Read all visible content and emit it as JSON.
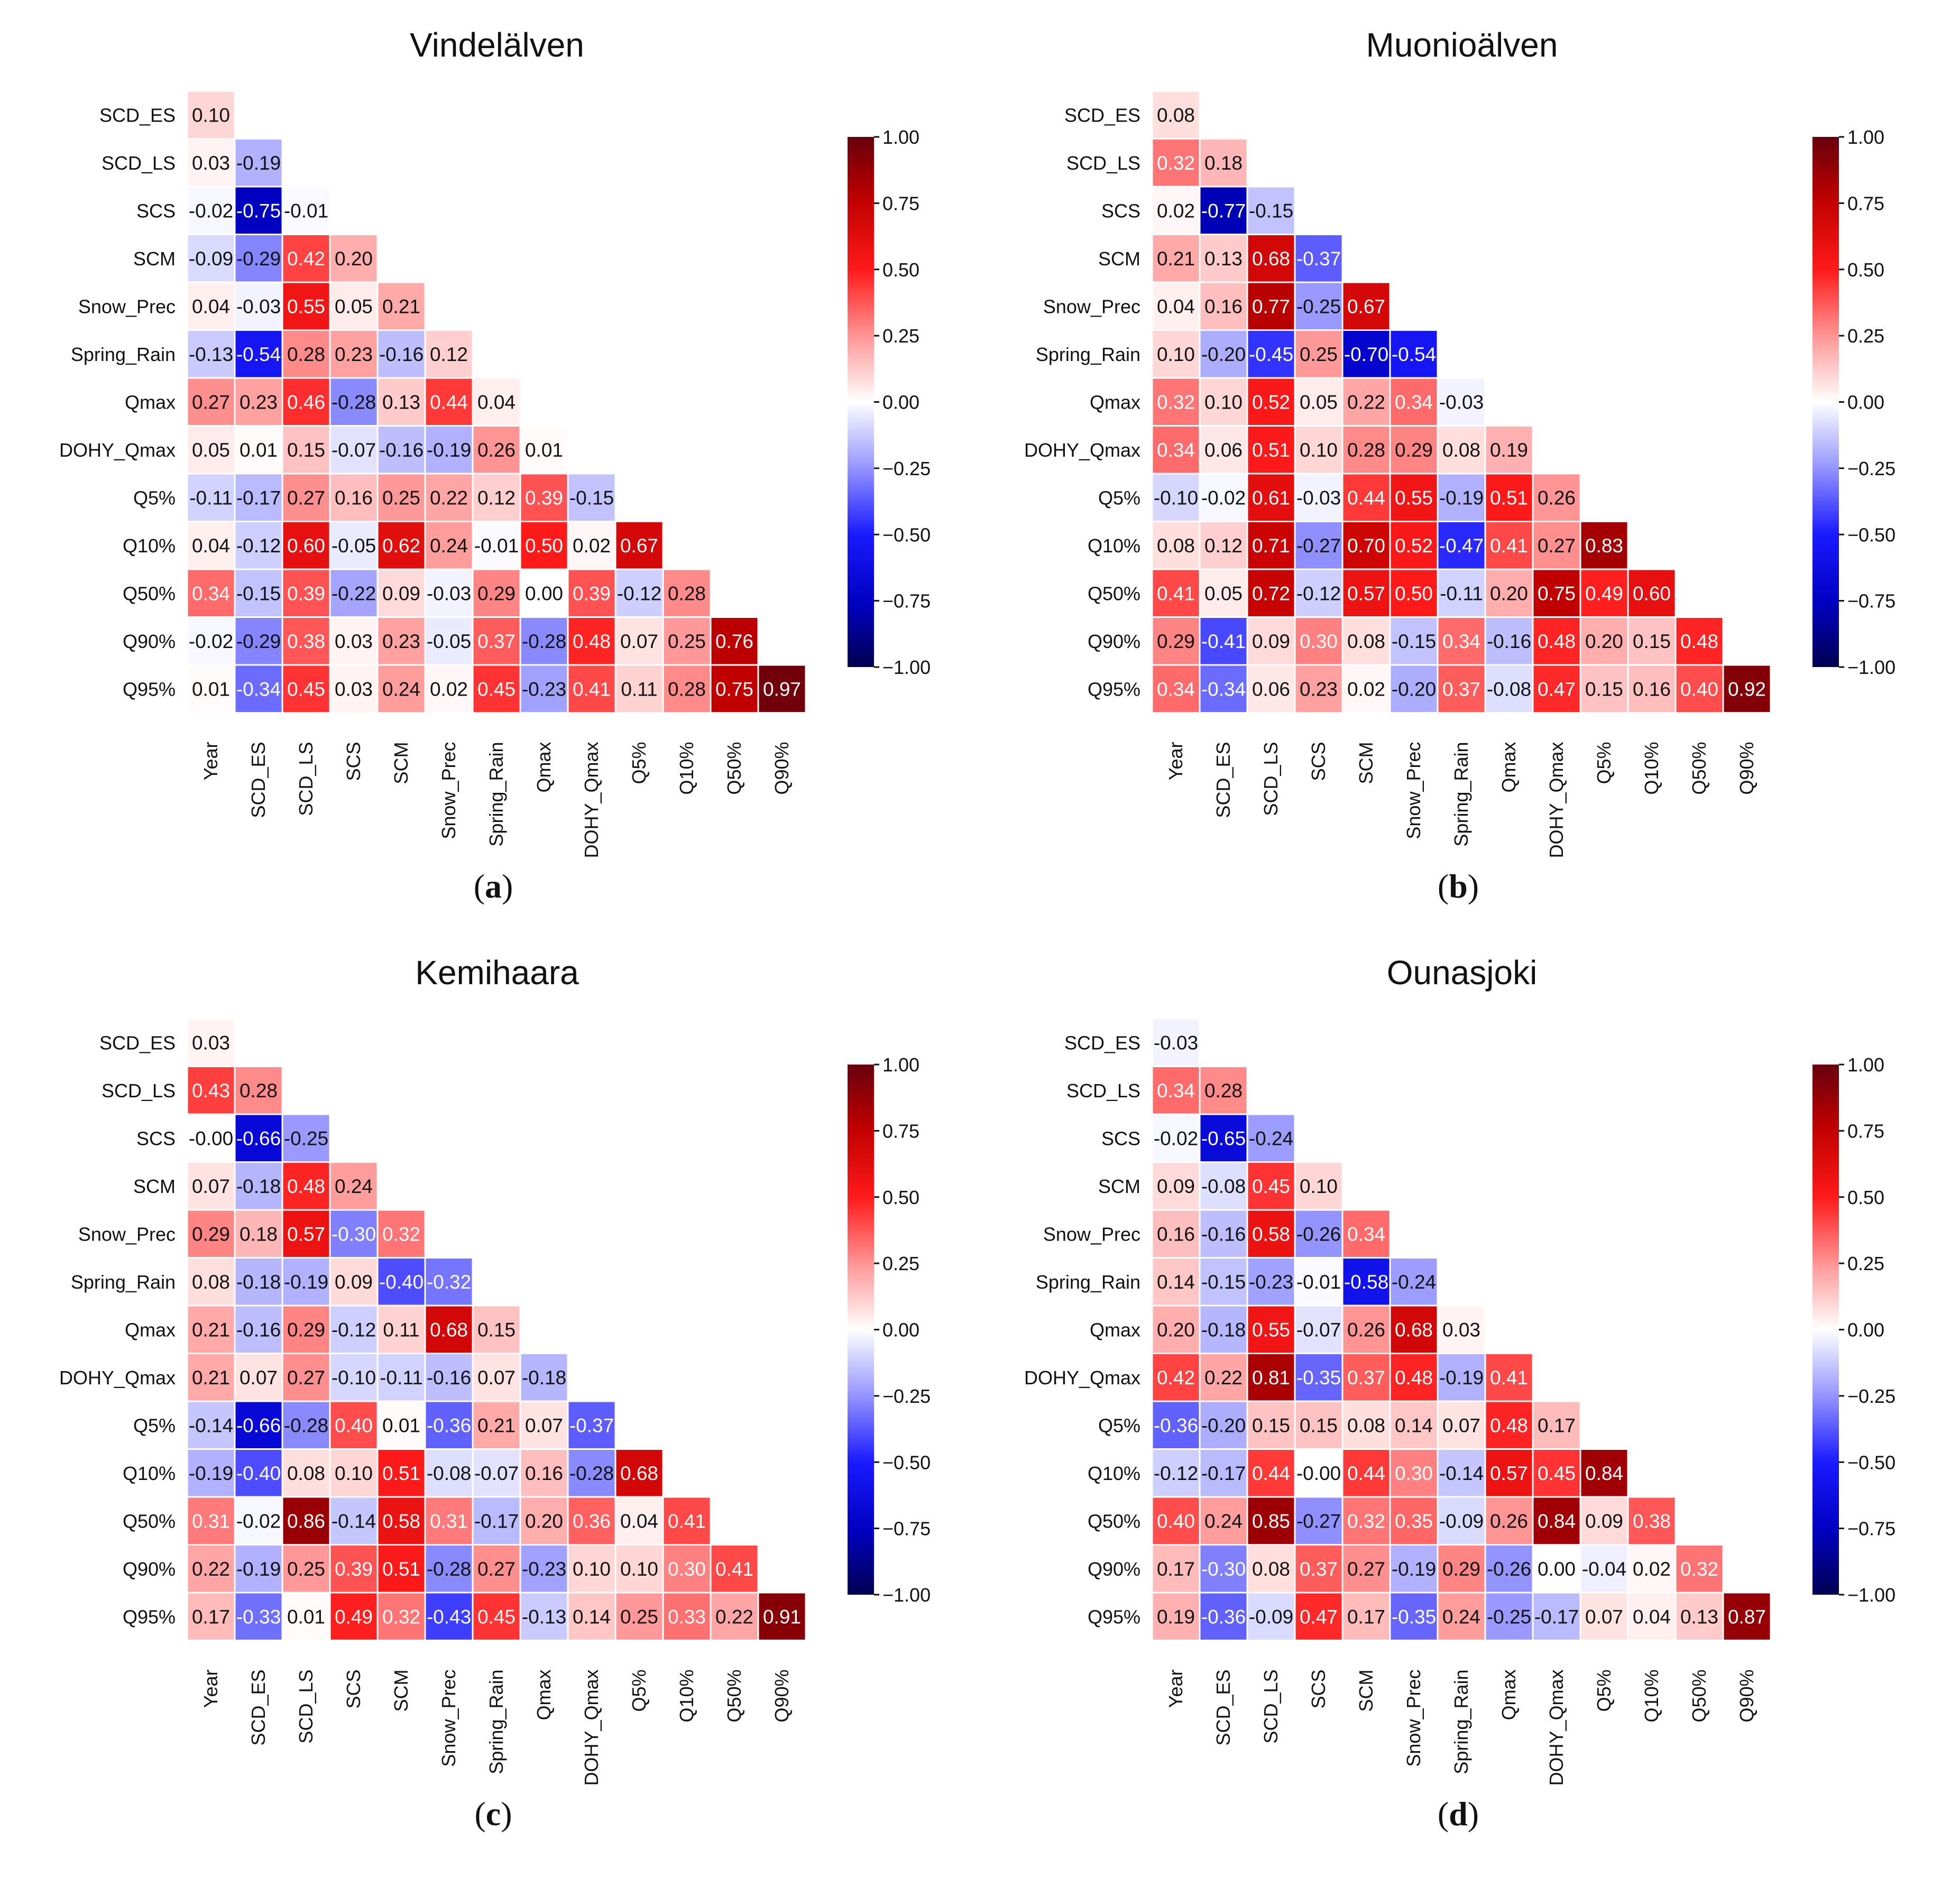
{
  "chart_data": [
    {
      "type": "heatmap",
      "panel_label": "a",
      "title": "Vindelälven",
      "row_labels": [
        "SCD_ES",
        "SCD_LS",
        "SCS",
        "SCM",
        "Snow_Prec",
        "Spring_Rain",
        "Qmax",
        "DOHY_Qmax",
        "Q5%",
        "Q10%",
        "Q50%",
        "Q90%",
        "Q95%"
      ],
      "col_labels": [
        "Year",
        "SCD_ES",
        "SCD_LS",
        "SCS",
        "SCM",
        "Snow_Prec",
        "Spring_Rain",
        "Qmax",
        "DOHY_Qmax",
        "Q5%",
        "Q10%",
        "Q50%",
        "Q90%"
      ],
      "values": [
        [
          "0.10"
        ],
        [
          "0.03",
          "-0.19"
        ],
        [
          "-0.02",
          "-0.75",
          "-0.01"
        ],
        [
          "-0.09",
          "-0.29",
          "0.42",
          "0.20"
        ],
        [
          "0.04",
          "-0.03",
          "0.55",
          "0.05",
          "0.21"
        ],
        [
          "-0.13",
          "-0.54",
          "0.28",
          "0.23",
          "-0.16",
          "0.12"
        ],
        [
          "0.27",
          "0.23",
          "0.46",
          "-0.28",
          "0.13",
          "0.44",
          "0.04"
        ],
        [
          "0.05",
          "0.01",
          "0.15",
          "-0.07",
          "-0.16",
          "-0.19",
          "0.26",
          "0.01"
        ],
        [
          "-0.11",
          "-0.17",
          "0.27",
          "0.16",
          "0.25",
          "0.22",
          "0.12",
          "0.39",
          "-0.15"
        ],
        [
          "0.04",
          "-0.12",
          "0.60",
          "-0.05",
          "0.62",
          "0.24",
          "-0.01",
          "0.50",
          "0.02",
          "0.67"
        ],
        [
          "0.34",
          "-0.15",
          "0.39",
          "-0.22",
          "0.09",
          "-0.03",
          "0.29",
          "0.00",
          "0.39",
          "-0.12",
          "0.28"
        ],
        [
          "-0.02",
          "-0.29",
          "0.38",
          "0.03",
          "0.23",
          "-0.05",
          "0.37",
          "-0.28",
          "0.48",
          "0.07",
          "0.25",
          "0.76"
        ],
        [
          "0.01",
          "-0.34",
          "0.45",
          "0.03",
          "0.24",
          "0.02",
          "0.45",
          "-0.23",
          "0.41",
          "0.11",
          "0.28",
          "0.75",
          "0.97"
        ]
      ],
      "colorbar": {
        "min": -1.0,
        "max": 1.0,
        "ticks": [
          "1.00",
          "0.75",
          "0.50",
          "0.25",
          "0.00",
          "−0.25",
          "−0.50",
          "−0.75",
          "−1.00"
        ]
      }
    },
    {
      "type": "heatmap",
      "panel_label": "b",
      "title": "Muonioälven",
      "row_labels": [
        "SCD_ES",
        "SCD_LS",
        "SCS",
        "SCM",
        "Snow_Prec",
        "Spring_Rain",
        "Qmax",
        "DOHY_Qmax",
        "Q5%",
        "Q10%",
        "Q50%",
        "Q90%",
        "Q95%"
      ],
      "col_labels": [
        "Year",
        "SCD_ES",
        "SCD_LS",
        "SCS",
        "SCM",
        "Snow_Prec",
        "Spring_Rain",
        "Qmax",
        "DOHY_Qmax",
        "Q5%",
        "Q10%",
        "Q50%",
        "Q90%"
      ],
      "values": [
        [
          "0.08"
        ],
        [
          "0.32",
          "0.18"
        ],
        [
          "0.02",
          "-0.77",
          "-0.15"
        ],
        [
          "0.21",
          "0.13",
          "0.68",
          "-0.37"
        ],
        [
          "0.04",
          "0.16",
          "0.77",
          "-0.25",
          "0.67"
        ],
        [
          "0.10",
          "-0.20",
          "-0.45",
          "0.25",
          "-0.70",
          "-0.54"
        ],
        [
          "0.32",
          "0.10",
          "0.52",
          "0.05",
          "0.22",
          "0.34",
          "-0.03"
        ],
        [
          "0.34",
          "0.06",
          "0.51",
          "0.10",
          "0.28",
          "0.29",
          "0.08",
          "0.19"
        ],
        [
          "-0.10",
          "-0.02",
          "0.61",
          "-0.03",
          "0.44",
          "0.55",
          "-0.19",
          "0.51",
          "0.26"
        ],
        [
          "0.08",
          "0.12",
          "0.71",
          "-0.27",
          "0.70",
          "0.52",
          "-0.47",
          "0.41",
          "0.27",
          "0.83"
        ],
        [
          "0.41",
          "0.05",
          "0.72",
          "-0.12",
          "0.57",
          "0.50",
          "-0.11",
          "0.20",
          "0.75",
          "0.49",
          "0.60"
        ],
        [
          "0.29",
          "-0.41",
          "0.09",
          "0.30",
          "0.08",
          "-0.15",
          "0.34",
          "-0.16",
          "0.48",
          "0.20",
          "0.15",
          "0.48"
        ],
        [
          "0.34",
          "-0.34",
          "0.06",
          "0.23",
          "0.02",
          "-0.20",
          "0.37",
          "-0.08",
          "0.47",
          "0.15",
          "0.16",
          "0.40",
          "0.92"
        ]
      ],
      "colorbar": {
        "min": -1.0,
        "max": 1.0,
        "ticks": [
          "1.00",
          "0.75",
          "0.50",
          "0.25",
          "0.00",
          "−0.25",
          "−0.50",
          "−0.75",
          "−1.00"
        ]
      }
    },
    {
      "type": "heatmap",
      "panel_label": "c",
      "title": "Kemihaara",
      "row_labels": [
        "SCD_ES",
        "SCD_LS",
        "SCS",
        "SCM",
        "Snow_Prec",
        "Spring_Rain",
        "Qmax",
        "DOHY_Qmax",
        "Q5%",
        "Q10%",
        "Q50%",
        "Q90%",
        "Q95%"
      ],
      "col_labels": [
        "Year",
        "SCD_ES",
        "SCD_LS",
        "SCS",
        "SCM",
        "Snow_Prec",
        "Spring_Rain",
        "Qmax",
        "DOHY_Qmax",
        "Q5%",
        "Q10%",
        "Q50%",
        "Q90%"
      ],
      "values": [
        [
          "0.03"
        ],
        [
          "0.43",
          "0.28"
        ],
        [
          "-0.00",
          "-0.66",
          "-0.25"
        ],
        [
          "0.07",
          "-0.18",
          "0.48",
          "0.24"
        ],
        [
          "0.29",
          "0.18",
          "0.57",
          "-0.30",
          "0.32"
        ],
        [
          "0.08",
          "-0.18",
          "-0.19",
          "0.09",
          "-0.40",
          "-0.32"
        ],
        [
          "0.21",
          "-0.16",
          "0.29",
          "-0.12",
          "0.11",
          "0.68",
          "0.15"
        ],
        [
          "0.21",
          "0.07",
          "0.27",
          "-0.10",
          "-0.11",
          "-0.16",
          "0.07",
          "-0.18"
        ],
        [
          "-0.14",
          "-0.66",
          "-0.28",
          "0.40",
          "0.01",
          "-0.36",
          "0.21",
          "0.07",
          "-0.37"
        ],
        [
          "-0.19",
          "-0.40",
          "0.08",
          "0.10",
          "0.51",
          "-0.08",
          "-0.07",
          "0.16",
          "-0.28",
          "0.68"
        ],
        [
          "0.31",
          "-0.02",
          "0.86",
          "-0.14",
          "0.58",
          "0.31",
          "-0.17",
          "0.20",
          "0.36",
          "0.04",
          "0.41"
        ],
        [
          "0.22",
          "-0.19",
          "0.25",
          "0.39",
          "0.51",
          "-0.28",
          "0.27",
          "-0.23",
          "0.10",
          "0.10",
          "0.30",
          "0.41"
        ],
        [
          "0.17",
          "-0.33",
          "0.01",
          "0.49",
          "0.32",
          "-0.43",
          "0.45",
          "-0.13",
          "0.14",
          "0.25",
          "0.33",
          "0.22",
          "0.91"
        ]
      ],
      "colorbar": {
        "min": -1.0,
        "max": 1.0,
        "ticks": [
          "1.00",
          "0.75",
          "0.50",
          "0.25",
          "0.00",
          "−0.25",
          "−0.50",
          "−0.75",
          "−1.00"
        ]
      }
    },
    {
      "type": "heatmap",
      "panel_label": "d",
      "title": "Ounasjoki",
      "row_labels": [
        "SCD_ES",
        "SCD_LS",
        "SCS",
        "SCM",
        "Snow_Prec",
        "Spring_Rain",
        "Qmax",
        "DOHY_Qmax",
        "Q5%",
        "Q10%",
        "Q50%",
        "Q90%",
        "Q95%"
      ],
      "col_labels": [
        "Year",
        "SCD_ES",
        "SCD_LS",
        "SCS",
        "SCM",
        "Snow_Prec",
        "Spring_Rain",
        "Qmax",
        "DOHY_Qmax",
        "Q5%",
        "Q10%",
        "Q50%",
        "Q90%"
      ],
      "values": [
        [
          "-0.03"
        ],
        [
          "0.34",
          "0.28"
        ],
        [
          "-0.02",
          "-0.65",
          "-0.24"
        ],
        [
          "0.09",
          "-0.08",
          "0.45",
          "0.10"
        ],
        [
          "0.16",
          "-0.16",
          "0.58",
          "-0.26",
          "0.34"
        ],
        [
          "0.14",
          "-0.15",
          "-0.23",
          "-0.01",
          "-0.58",
          "-0.24"
        ],
        [
          "0.20",
          "-0.18",
          "0.55",
          "-0.07",
          "0.26",
          "0.68",
          "0.03"
        ],
        [
          "0.42",
          "0.22",
          "0.81",
          "-0.35",
          "0.37",
          "0.48",
          "-0.19",
          "0.41"
        ],
        [
          "-0.36",
          "-0.20",
          "0.15",
          "0.15",
          "0.08",
          "0.14",
          "0.07",
          "0.48",
          "0.17"
        ],
        [
          "-0.12",
          "-0.17",
          "0.44",
          "-0.00",
          "0.44",
          "0.30",
          "-0.14",
          "0.57",
          "0.45",
          "0.84"
        ],
        [
          "0.40",
          "0.24",
          "0.85",
          "-0.27",
          "0.32",
          "0.35",
          "-0.09",
          "0.26",
          "0.84",
          "0.09",
          "0.38"
        ],
        [
          "0.17",
          "-0.30",
          "0.08",
          "0.37",
          "0.27",
          "-0.19",
          "0.29",
          "-0.26",
          "0.00",
          "-0.04",
          "0.02",
          "0.32"
        ],
        [
          "0.19",
          "-0.36",
          "-0.09",
          "0.47",
          "0.17",
          "-0.35",
          "0.24",
          "-0.25",
          "-0.17",
          "0.07",
          "0.04",
          "0.13",
          "0.87"
        ]
      ],
      "colorbar": {
        "min": -1.0,
        "max": 1.0,
        "ticks": [
          "1.00",
          "0.75",
          "0.50",
          "0.25",
          "0.00",
          "−0.25",
          "−0.50",
          "−0.75",
          "−1.00"
        ]
      }
    }
  ]
}
